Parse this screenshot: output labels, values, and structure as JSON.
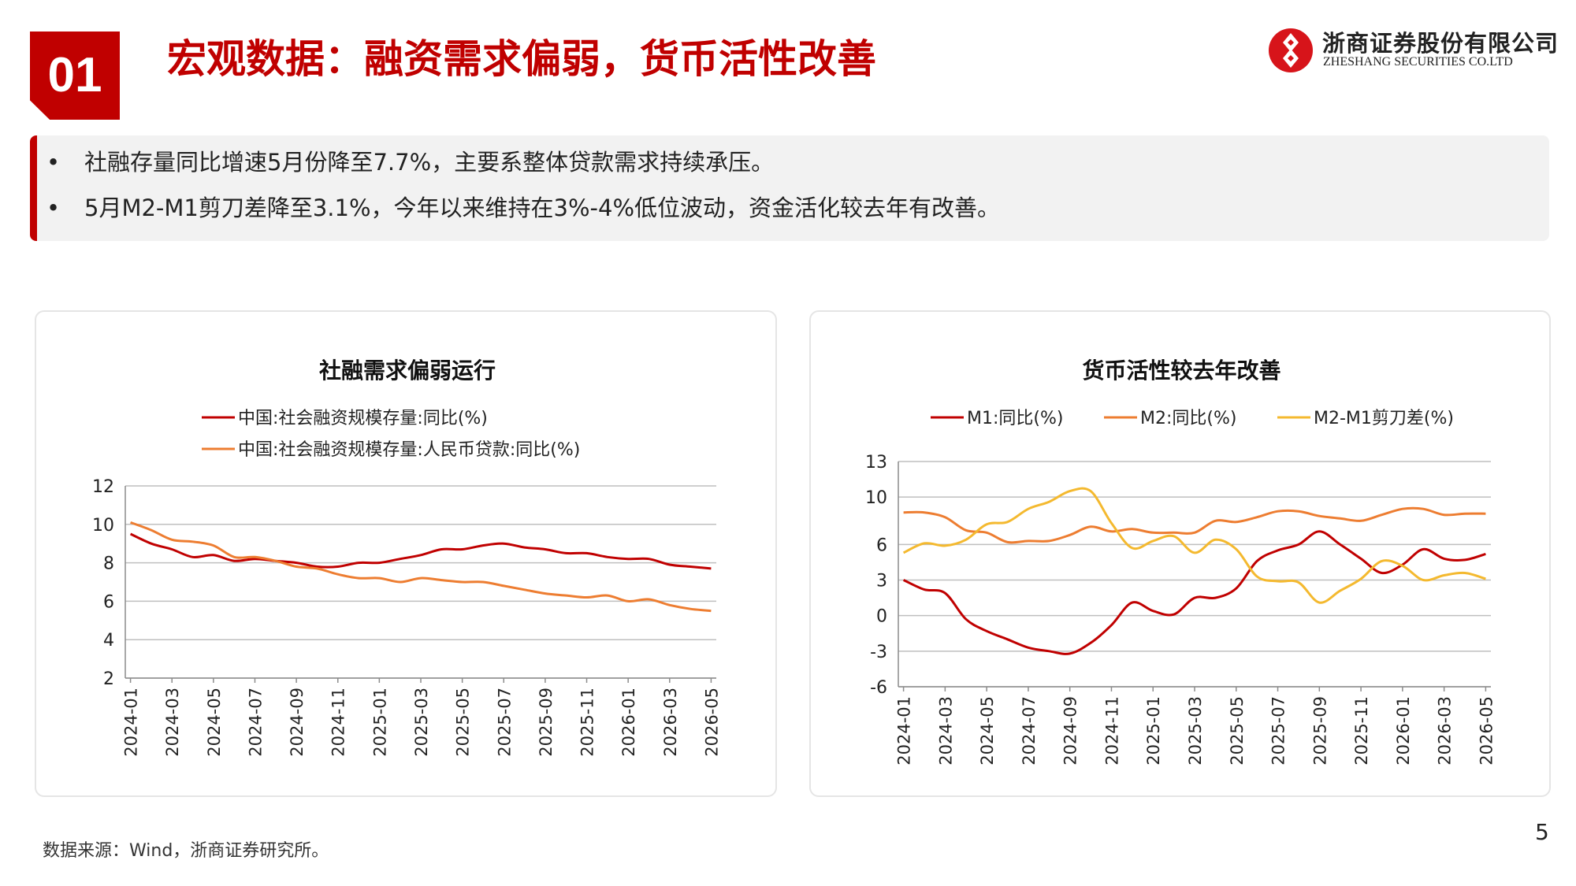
{
  "section": {
    "number": "01",
    "title": "宏观数据：融资需求偏弱，货币活性改善"
  },
  "logo": {
    "name_cn": "浙商证券股份有限公司",
    "name_en": "ZHESHANG SECURITIES CO.LTD"
  },
  "bullets": [
    {
      "dot": "•",
      "text": "社融存量同比增速5月份降至7.7%，主要系整体贷款需求持续承压。"
    },
    {
      "dot": "•",
      "text": "5月M2-M1剪刀差降至3.1%，今年以来维持在3%-4%低位波动，资金活化较去年有改善。"
    }
  ],
  "chart_data": [
    {
      "type": "line",
      "title": "社融需求偏弱运行",
      "legend_position": "top",
      "grid": true,
      "ylim": [
        2,
        12
      ],
      "yticks": [
        2,
        4,
        6,
        8,
        10,
        12
      ],
      "x": [
        "2024-01",
        "2024-02",
        "2024-03",
        "2024-04",
        "2024-05",
        "2024-06",
        "2024-07",
        "2024-08",
        "2024-09",
        "2024-10",
        "2024-11",
        "2024-12",
        "2025-01",
        "2025-02",
        "2025-03",
        "2025-04",
        "2025-05",
        "2025-06",
        "2025-07",
        "2025-08",
        "2025-09",
        "2025-10",
        "2025-11",
        "2025-12",
        "2026-01",
        "2026-02",
        "2026-03",
        "2026-04",
        "2026-05"
      ],
      "xtick_labels": [
        "2024-01",
        "2024-03",
        "2024-05",
        "2024-07",
        "2024-09",
        "2024-11",
        "2025-01",
        "2025-03",
        "2025-05",
        "2025-07",
        "2025-09",
        "2025-11",
        "2026-01",
        "2026-03",
        "2026-05"
      ],
      "series": [
        {
          "name": "中国:社会融资规模存量:同比(%)",
          "color": "#c00000",
          "values": [
            9.5,
            9.0,
            8.7,
            8.3,
            8.4,
            8.1,
            8.2,
            8.1,
            8.0,
            7.8,
            7.8,
            8.0,
            8.0,
            8.2,
            8.4,
            8.7,
            8.7,
            8.9,
            9.0,
            8.8,
            8.7,
            8.5,
            8.5,
            8.3,
            8.2,
            8.2,
            7.9,
            7.8,
            7.7
          ]
        },
        {
          "name": "中国:社会融资规模存量:人民币贷款:同比(%)",
          "color": "#ed7d31",
          "values": [
            10.1,
            9.7,
            9.2,
            9.1,
            8.9,
            8.3,
            8.3,
            8.1,
            7.8,
            7.7,
            7.4,
            7.2,
            7.2,
            7.0,
            7.2,
            7.1,
            7.0,
            7.0,
            6.8,
            6.6,
            6.4,
            6.3,
            6.2,
            6.3,
            6.0,
            6.1,
            5.8,
            5.6,
            5.5
          ]
        }
      ]
    },
    {
      "type": "line",
      "title": "货币活性较去年改善",
      "legend_position": "top",
      "grid": true,
      "ylim": [
        -6,
        13
      ],
      "yticks": [
        13,
        10,
        6,
        3,
        0,
        -3,
        -6
      ],
      "x": [
        "2024-01",
        "2024-02",
        "2024-03",
        "2024-04",
        "2024-05",
        "2024-06",
        "2024-07",
        "2024-08",
        "2024-09",
        "2024-10",
        "2024-11",
        "2024-12",
        "2025-01",
        "2025-02",
        "2025-03",
        "2025-04",
        "2025-05",
        "2025-06",
        "2025-07",
        "2025-08",
        "2025-09",
        "2025-10",
        "2025-11",
        "2025-12",
        "2026-01",
        "2026-02",
        "2026-03",
        "2026-04",
        "2026-05"
      ],
      "xtick_labels": [
        "2024-01",
        "2024-03",
        "2024-05",
        "2024-07",
        "2024-09",
        "2024-11",
        "2025-01",
        "2025-03",
        "2025-05",
        "2025-07",
        "2025-09",
        "2025-11",
        "2026-01",
        "2026-03",
        "2026-05"
      ],
      "series": [
        {
          "name": "M1:同比(%)",
          "color": "#c00000",
          "values": [
            3.0,
            2.2,
            1.9,
            -0.3,
            -1.3,
            -2.0,
            -2.7,
            -3.0,
            -3.2,
            -2.3,
            -0.8,
            1.1,
            0.4,
            0.1,
            1.5,
            1.5,
            2.3,
            4.6,
            5.5,
            6.0,
            7.1,
            6.0,
            4.8,
            3.6,
            4.3,
            5.6,
            4.8,
            4.7,
            5.2
          ]
        },
        {
          "name": "M2:同比(%)",
          "color": "#ed7d31",
          "values": [
            8.7,
            8.7,
            8.3,
            7.2,
            7.0,
            6.2,
            6.3,
            6.3,
            6.8,
            7.5,
            7.1,
            7.3,
            7.0,
            7.0,
            7.0,
            8.0,
            7.9,
            8.3,
            8.8,
            8.8,
            8.4,
            8.2,
            8.0,
            8.5,
            9.0,
            9.0,
            8.5,
            8.6,
            8.6
          ]
        },
        {
          "name": "M2-M1剪刀差(%)",
          "color": "#f4b92f",
          "values": [
            5.3,
            6.1,
            5.9,
            6.4,
            7.7,
            7.9,
            9.0,
            9.6,
            10.5,
            10.5,
            7.8,
            5.7,
            6.3,
            6.7,
            5.3,
            6.4,
            5.6,
            3.3,
            2.9,
            2.8,
            1.1,
            2.1,
            3.1,
            4.6,
            4.2,
            3.0,
            3.4,
            3.6,
            3.1
          ]
        }
      ]
    }
  ],
  "footnote": "数据来源：Wind，浙商证券研究所。",
  "page_number": "5"
}
